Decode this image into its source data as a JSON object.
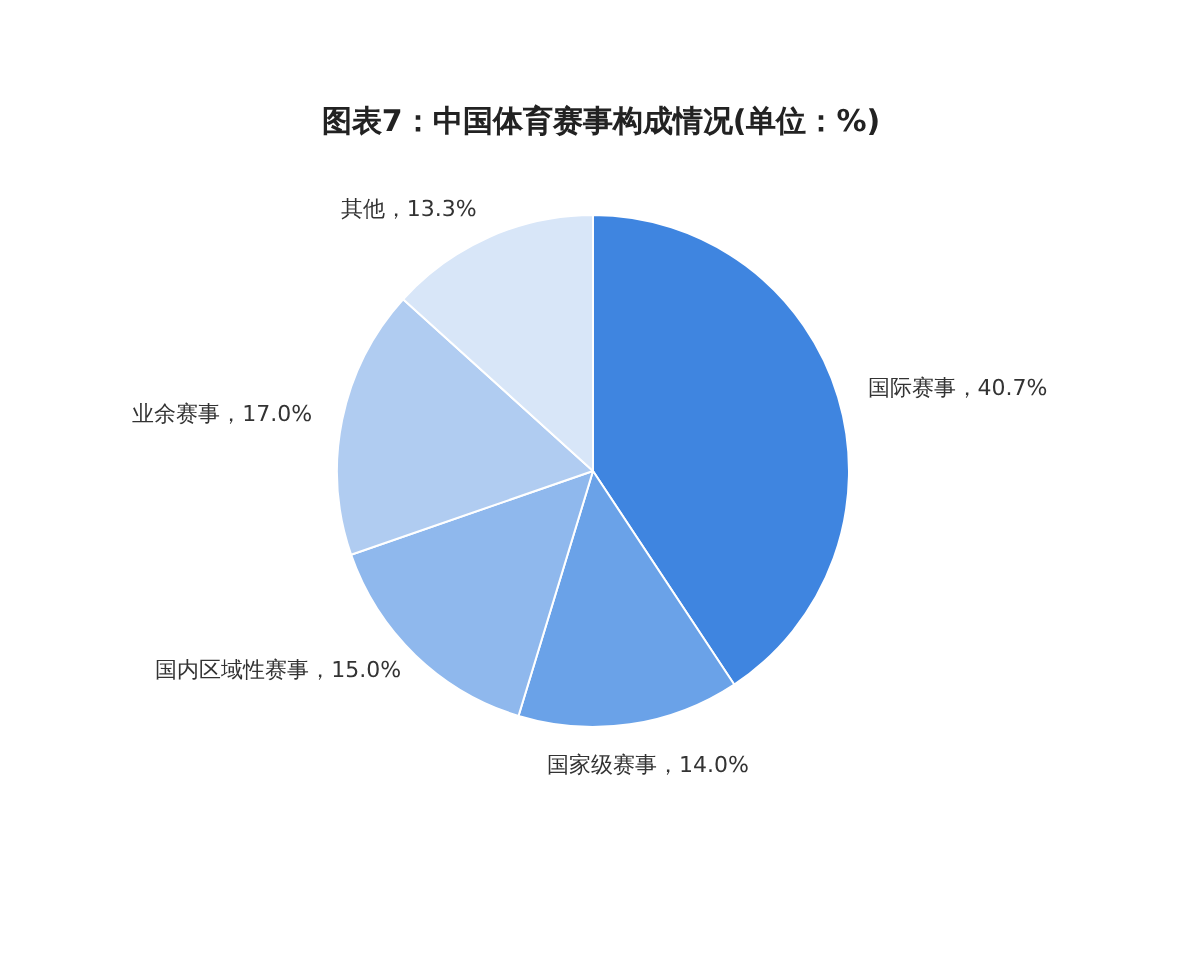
{
  "chart_data": {
    "type": "pie",
    "title": "图表7：中国体育赛事构成情况(单位：%)",
    "categories": [
      "国际赛事",
      "国家级赛事",
      "国内区域性赛事",
      "业余赛事",
      "其他"
    ],
    "values": [
      40.7,
      14.0,
      15.0,
      17.0,
      13.3
    ],
    "value_labels": [
      "40.7%",
      "14.0%",
      "15.0%",
      "17.0%",
      "13.3%"
    ],
    "colors": [
      "#3f85e0",
      "#6aa2e8",
      "#8fb8ed",
      "#b0ccf1",
      "#d8e6f8"
    ]
  }
}
